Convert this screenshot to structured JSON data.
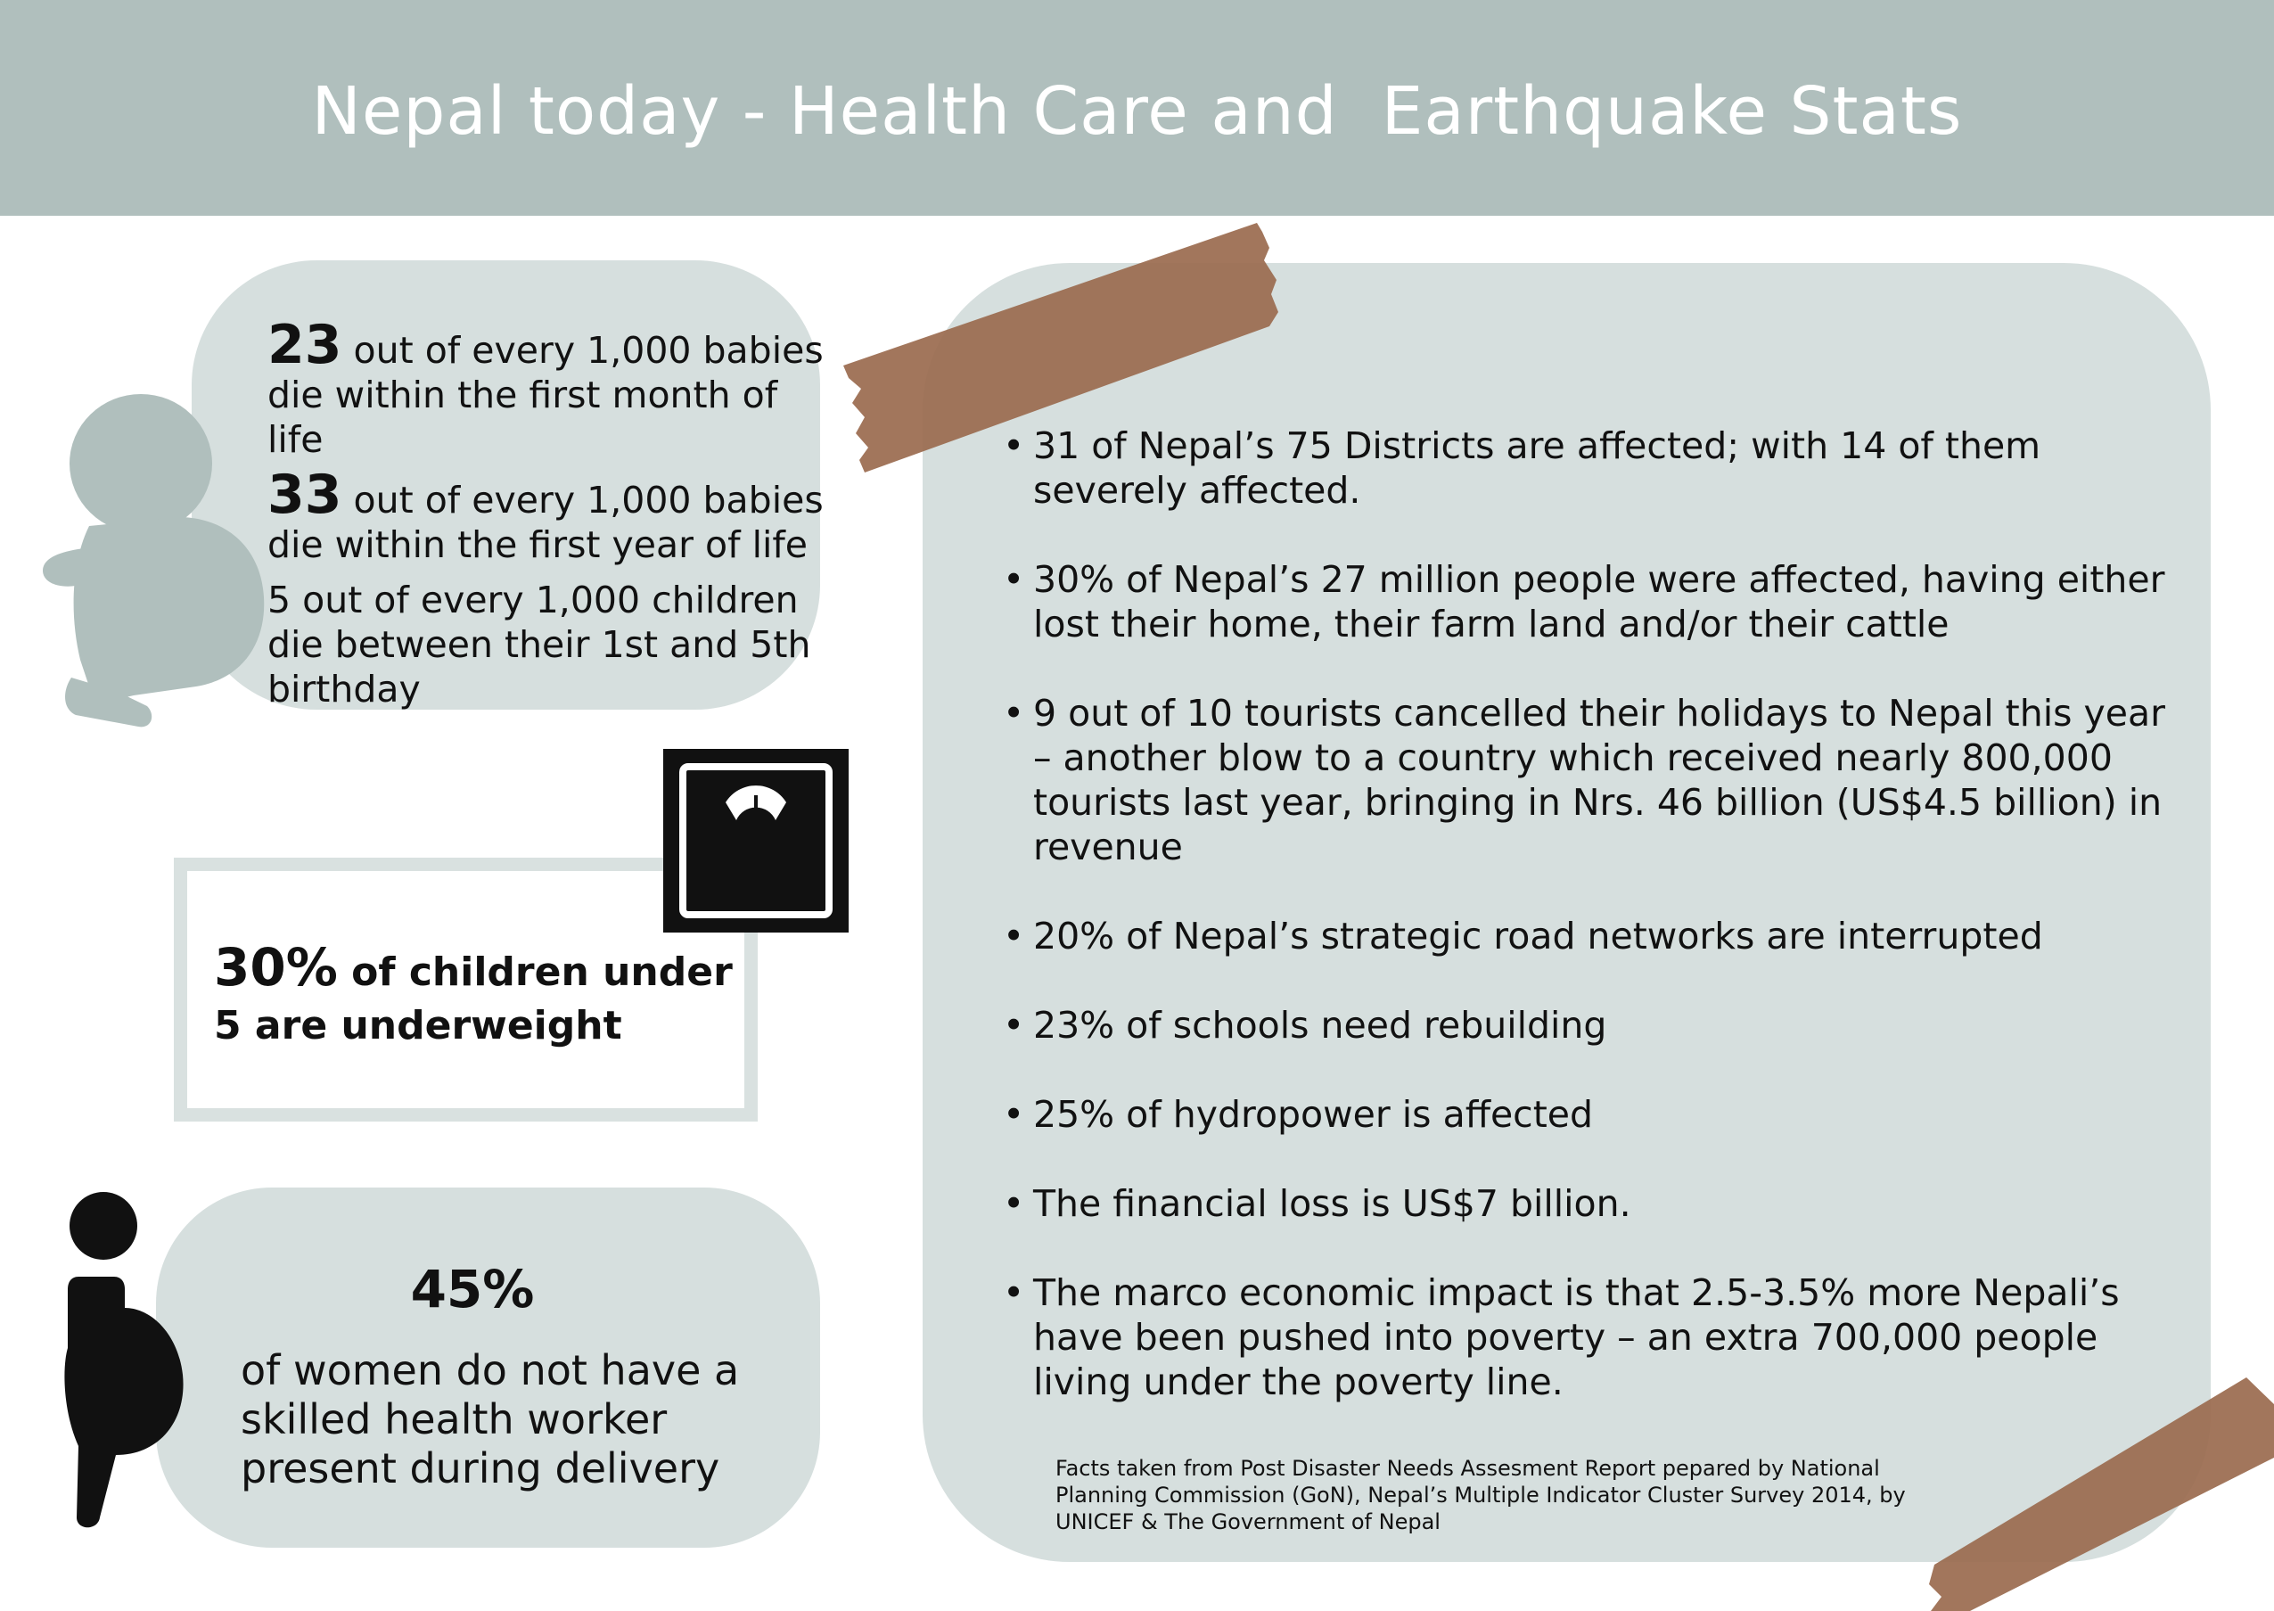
{
  "header": {
    "title": "Nepal today - Health Care and  Earthquake Stats"
  },
  "babies": {
    "stat1_number": "23",
    "stat1_text_a": " out of every 1,000 babies",
    "stat1_text_b": "die within the first month of life",
    "stat2_number": "33",
    "stat2_text_a": " out of every 1,000 babies",
    "stat2_text_b": "die within the first year of life",
    "stat3_text_a": "5 out of every 1,000 children",
    "stat3_text_b": "die between their 1st and 5th",
    "stat3_text_c": "birthday"
  },
  "underweight": {
    "percent": "30%",
    "text": " of children under 5 are underweight"
  },
  "women": {
    "percent": "45%",
    "text": "of women do not have a skilled health worker present during delivery"
  },
  "earthquake": {
    "items": [
      "31 of Nepal’s 75 Districts are affected; with 14 of them severely affected.",
      "30% of Nepal’s 27 million people were affected, having either lost their home, their farm land and/or their cattle",
      "9 out of 10 tourists cancelled their holidays to Nepal this year – another blow to a country which received nearly 800,000 tourists last year, bringing in Nrs. 46 billion (US$4.5 billion) in revenue",
      "20% of Nepal’s strategic road networks are interrupted",
      "23% of schools need rebuilding",
      "25% of hydropower is affected",
      "The financial loss is US$7 billion.",
      "The marco economic impact is that 2.5-3.5% more Nepali’s have been pushed into poverty – an extra 700,000 people living under the poverty line."
    ],
    "source": "Facts taken from  Post Disaster Needs Assesment Report pepared by National Planning Commission (GoN), Nepal’s Multiple Indicator Cluster Survey 2014, by UNICEF & The Government of Nepal"
  },
  "colors": {
    "header": "#b0bfbd",
    "panel": "#d6dfde",
    "tape": "#9a6a4e"
  },
  "icons": [
    "baby-silhouette-icon",
    "scale-icon",
    "pregnant-woman-icon",
    "tape-strip"
  ]
}
